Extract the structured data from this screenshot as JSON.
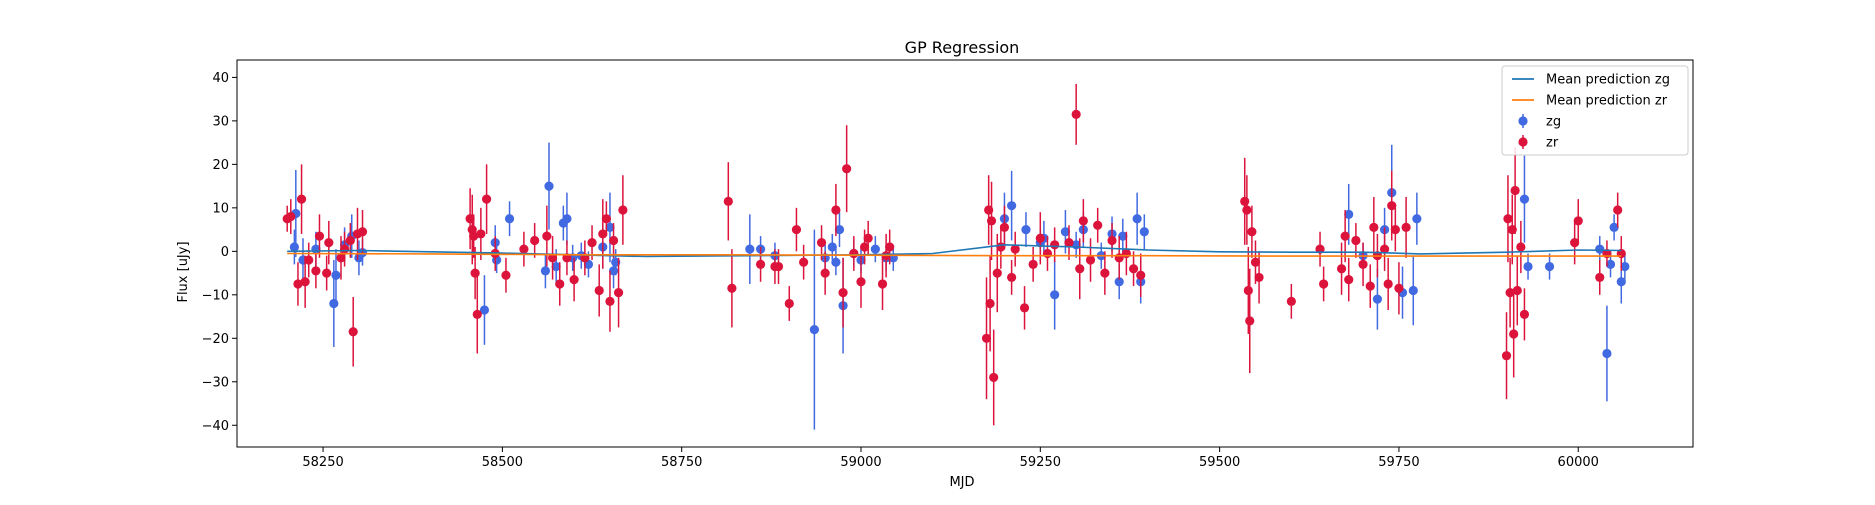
{
  "chart_data": {
    "type": "scatter",
    "title": "GP Regression",
    "xlabel": "MJD",
    "ylabel": "Flux [uJy]",
    "xlim": [
      58130,
      60160
    ],
    "ylim": [
      -45,
      44
    ],
    "xticks": [
      58250,
      58500,
      58750,
      59000,
      59250,
      59500,
      59750,
      60000
    ],
    "yticks": [
      -40,
      -30,
      -20,
      -10,
      0,
      10,
      20,
      30,
      40
    ],
    "legend_position": "top-right",
    "legend": [
      "Mean prediction zg",
      "Mean prediction zr",
      "zg",
      "zr"
    ],
    "grid": false,
    "lines": [
      {
        "name": "Mean prediction zg",
        "color": "#1f77b4",
        "x": [
          58200,
          58300,
          58500,
          58700,
          59000,
          59100,
          59200,
          59300,
          59400,
          59500,
          59600,
          59700,
          59780,
          59900,
          60000,
          60060
        ],
        "y": [
          0.0,
          0.2,
          -0.4,
          -1.2,
          -0.8,
          -0.5,
          1.5,
          1.0,
          0.3,
          -0.1,
          -0.2,
          -0.2,
          -0.6,
          -0.2,
          0.3,
          0.2
        ]
      },
      {
        "name": "Mean prediction zr",
        "color": "#ff7f0e",
        "x": [
          58200,
          58400,
          58600,
          58800,
          59000,
          59200,
          59400,
          59600,
          59800,
          60000,
          60060
        ],
        "y": [
          -0.5,
          -0.6,
          -0.8,
          -0.8,
          -0.9,
          -1.0,
          -1.0,
          -1.1,
          -1.1,
          -1.1,
          -1.1
        ]
      }
    ],
    "series": [
      {
        "name": "zg",
        "color": "#4169e1",
        "points": [
          [
            58210,
            1.0,
            4
          ],
          [
            58212,
            8.7,
            10
          ],
          [
            58222,
            -2.0,
            5
          ],
          [
            58240,
            0.5,
            4
          ],
          [
            58265,
            -12.0,
            10
          ],
          [
            58268,
            -5.5,
            6
          ],
          [
            58280,
            1.5,
            4
          ],
          [
            58290,
            3.5,
            5
          ],
          [
            58300,
            -1.5,
            4
          ],
          [
            58305,
            -0.3,
            3
          ],
          [
            58475,
            -13.5,
            8
          ],
          [
            58490,
            2.0,
            4
          ],
          [
            58492,
            -2.0,
            3
          ],
          [
            58510,
            7.5,
            4
          ],
          [
            58560,
            -4.5,
            4
          ],
          [
            58565,
            15.0,
            10
          ],
          [
            58575,
            -3.5,
            4
          ],
          [
            58590,
            7.5,
            6
          ],
          [
            58585,
            6.5,
            4
          ],
          [
            58598,
            -1.5,
            3
          ],
          [
            58610,
            -1.0,
            3
          ],
          [
            58620,
            -3.0,
            3
          ],
          [
            58640,
            1.0,
            5
          ],
          [
            58650,
            5.5,
            8
          ],
          [
            58655,
            -4.5,
            4
          ],
          [
            58658,
            -2.5,
            3
          ],
          [
            58845,
            0.5,
            8
          ],
          [
            58860,
            0.5,
            3
          ],
          [
            58880,
            -1.0,
            3
          ],
          [
            58935,
            -18.0,
            23
          ],
          [
            58950,
            -1.5,
            3
          ],
          [
            58960,
            1.0,
            3
          ],
          [
            58965,
            -2.5,
            3
          ],
          [
            58970,
            5.0,
            4
          ],
          [
            58975,
            -12.5,
            11
          ],
          [
            58990,
            -0.5,
            3
          ],
          [
            59000,
            -2.0,
            3
          ],
          [
            59020,
            0.5,
            3
          ],
          [
            59035,
            -1.5,
            3
          ],
          [
            59045,
            -1.5,
            3
          ],
          [
            59200,
            7.5,
            6
          ],
          [
            59210,
            10.5,
            8
          ],
          [
            59230,
            5.0,
            4
          ],
          [
            59250,
            2.0,
            3
          ],
          [
            59255,
            3.0,
            4
          ],
          [
            59270,
            -10.0,
            8
          ],
          [
            59285,
            4.5,
            5
          ],
          [
            59300,
            1.5,
            3
          ],
          [
            59310,
            5.0,
            4
          ],
          [
            59335,
            -1.0,
            3
          ],
          [
            59350,
            4.0,
            4
          ],
          [
            59360,
            -7.0,
            4
          ],
          [
            59365,
            3.5,
            4
          ],
          [
            59385,
            7.5,
            6
          ],
          [
            59390,
            -7.0,
            5
          ],
          [
            59395,
            4.5,
            4
          ],
          [
            59680,
            8.5,
            7
          ],
          [
            59700,
            -1.0,
            3
          ],
          [
            59720,
            -11.0,
            7
          ],
          [
            59730,
            5.0,
            5
          ],
          [
            59740,
            13.5,
            11
          ],
          [
            59755,
            -9.5,
            6
          ],
          [
            59770,
            -9.0,
            8
          ],
          [
            59775,
            7.5,
            6
          ],
          [
            59925,
            12.0,
            10
          ],
          [
            59930,
            -3.5,
            3
          ],
          [
            59960,
            -3.5,
            3
          ],
          [
            60030,
            0.5,
            3
          ],
          [
            60040,
            -23.5,
            11
          ],
          [
            60045,
            -3.0,
            3
          ],
          [
            60050,
            5.5,
            3
          ],
          [
            60060,
            -7.0,
            5
          ],
          [
            60065,
            -3.5,
            3
          ]
        ]
      },
      {
        "name": "zr",
        "color": "#dc143c",
        "points": [
          [
            58200,
            7.5,
            3
          ],
          [
            58205,
            8.0,
            4
          ],
          [
            58215,
            -7.5,
            5
          ],
          [
            58220,
            12.0,
            8
          ],
          [
            58225,
            -7.0,
            6
          ],
          [
            58230,
            -2.0,
            4
          ],
          [
            58240,
            -4.5,
            4
          ],
          [
            58245,
            3.5,
            5
          ],
          [
            58255,
            -5.0,
            4
          ],
          [
            58258,
            2.0,
            5
          ],
          [
            58275,
            -1.5,
            5
          ],
          [
            58280,
            0.5,
            4
          ],
          [
            58288,
            2.5,
            4
          ],
          [
            58292,
            -18.5,
            8
          ],
          [
            58298,
            4.0,
            6
          ],
          [
            58305,
            4.5,
            5
          ],
          [
            58455,
            7.5,
            7
          ],
          [
            58458,
            5.0,
            8
          ],
          [
            58460,
            3.5,
            5
          ],
          [
            58462,
            -5.0,
            6
          ],
          [
            58465,
            -14.5,
            9
          ],
          [
            58470,
            4.0,
            6
          ],
          [
            58478,
            12.0,
            8
          ],
          [
            58490,
            -0.5,
            4
          ],
          [
            58505,
            -5.5,
            4
          ],
          [
            58530,
            0.5,
            4
          ],
          [
            58545,
            2.5,
            4
          ],
          [
            58562,
            3.5,
            7
          ],
          [
            58570,
            -1.5,
            5
          ],
          [
            58580,
            -7.5,
            5
          ],
          [
            58590,
            -1.5,
            4
          ],
          [
            58600,
            -6.5,
            5
          ],
          [
            58615,
            -1.5,
            4
          ],
          [
            58625,
            2.0,
            4
          ],
          [
            58635,
            -9.0,
            6
          ],
          [
            58640,
            4.0,
            8
          ],
          [
            58645,
            7.5,
            4
          ],
          [
            58650,
            -11.5,
            7
          ],
          [
            58655,
            2.5,
            4
          ],
          [
            58662,
            -9.5,
            8
          ],
          [
            58668,
            9.5,
            8
          ],
          [
            58815,
            11.5,
            9
          ],
          [
            58820,
            -8.5,
            9
          ],
          [
            58860,
            -3.0,
            4
          ],
          [
            58880,
            -3.5,
            4
          ],
          [
            58885,
            -3.5,
            4
          ],
          [
            58900,
            -12.0,
            4
          ],
          [
            58910,
            5.0,
            5
          ],
          [
            58920,
            -2.5,
            4
          ],
          [
            58945,
            2.0,
            4
          ],
          [
            58950,
            -5.0,
            5
          ],
          [
            58965,
            9.5,
            6
          ],
          [
            58975,
            -9.5,
            8
          ],
          [
            58980,
            19.0,
            10
          ],
          [
            58990,
            -0.5,
            4
          ],
          [
            59000,
            -7.0,
            6
          ],
          [
            59005,
            1.0,
            4
          ],
          [
            59010,
            3.0,
            4
          ],
          [
            59030,
            -7.5,
            6
          ],
          [
            59035,
            -1.0,
            5
          ],
          [
            59040,
            1.0,
            4
          ],
          [
            59175,
            -20.0,
            14
          ],
          [
            59178,
            9.5,
            8
          ],
          [
            59180,
            -12.0,
            11
          ],
          [
            59182,
            7.0,
            9
          ],
          [
            59185,
            -29.0,
            11
          ],
          [
            59190,
            -5.0,
            9
          ],
          [
            59195,
            1.0,
            5
          ],
          [
            59200,
            5.5,
            5
          ],
          [
            59210,
            -6.0,
            4
          ],
          [
            59215,
            0.5,
            4
          ],
          [
            59228,
            -13.0,
            5
          ],
          [
            59240,
            -3.0,
            4
          ],
          [
            59250,
            3.0,
            6
          ],
          [
            59260,
            -0.5,
            4
          ],
          [
            59270,
            1.5,
            4
          ],
          [
            59290,
            2.0,
            4
          ],
          [
            59300,
            31.5,
            7
          ],
          [
            59305,
            -4.0,
            7
          ],
          [
            59310,
            7.0,
            5
          ],
          [
            59320,
            -2.0,
            5
          ],
          [
            59330,
            6.0,
            4
          ],
          [
            59340,
            -5.0,
            5
          ],
          [
            59350,
            2.5,
            4
          ],
          [
            59360,
            -1.5,
            5
          ],
          [
            59370,
            -0.5,
            5
          ],
          [
            59380,
            -4.0,
            4
          ],
          [
            59390,
            -5.5,
            5
          ],
          [
            59535,
            11.5,
            10
          ],
          [
            59538,
            9.5,
            8
          ],
          [
            59540,
            -9.0,
            10
          ],
          [
            59542,
            -16.0,
            12
          ],
          [
            59545,
            4.5,
            6
          ],
          [
            59550,
            -2.5,
            5
          ],
          [
            59555,
            -6.0,
            6
          ],
          [
            59600,
            -11.5,
            4
          ],
          [
            59640,
            0.5,
            4
          ],
          [
            59645,
            -7.5,
            4
          ],
          [
            59670,
            -4.0,
            6
          ],
          [
            59675,
            3.5,
            6
          ],
          [
            59680,
            -6.5,
            5
          ],
          [
            59690,
            2.5,
            4
          ],
          [
            59700,
            -3.0,
            5
          ],
          [
            59710,
            -8.0,
            5
          ],
          [
            59715,
            5.5,
            7
          ],
          [
            59720,
            -1.0,
            5
          ],
          [
            59730,
            0.5,
            5
          ],
          [
            59735,
            -7.5,
            6
          ],
          [
            59740,
            10.5,
            8
          ],
          [
            59745,
            5.0,
            5
          ],
          [
            59750,
            -8.5,
            6
          ],
          [
            59760,
            5.5,
            7
          ],
          [
            59900,
            -24.0,
            10
          ],
          [
            59902,
            7.5,
            10
          ],
          [
            59905,
            -9.5,
            8
          ],
          [
            59908,
            5.0,
            8
          ],
          [
            59910,
            -19.0,
            10
          ],
          [
            59912,
            14.0,
            10
          ],
          [
            59915,
            -9.0,
            8
          ],
          [
            59920,
            1.0,
            6
          ],
          [
            59925,
            -14.5,
            6
          ],
          [
            59995,
            2.0,
            5
          ],
          [
            60000,
            7.0,
            5
          ],
          [
            60030,
            -6.0,
            4
          ],
          [
            60040,
            -0.5,
            3
          ],
          [
            60055,
            9.5,
            4
          ],
          [
            60060,
            -0.5,
            4
          ]
        ]
      }
    ]
  }
}
